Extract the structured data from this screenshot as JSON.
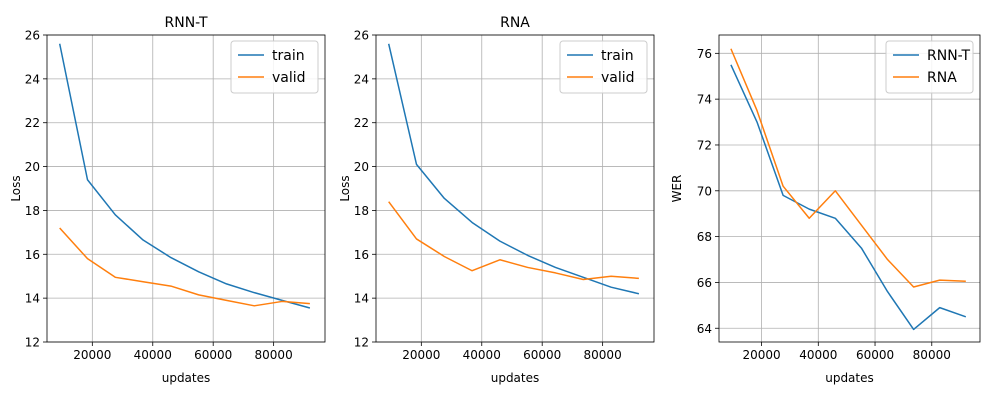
{
  "chart_data": [
    {
      "type": "line",
      "title": "RNN-T",
      "xlabel": "updates",
      "ylabel": "Loss",
      "xlim": [
        5000,
        97000
      ],
      "ylim": [
        12,
        26
      ],
      "xticks": [
        20000,
        40000,
        60000,
        80000
      ],
      "xtick_labels": [
        "20000",
        "40000",
        "60000",
        "80000"
      ],
      "yticks": [
        12,
        14,
        16,
        18,
        20,
        22,
        24,
        26
      ],
      "ytick_labels": [
        "12",
        "14",
        "16",
        "18",
        "20",
        "22",
        "24",
        "26"
      ],
      "grid": true,
      "legend_position": "upper-right",
      "series": [
        {
          "name": "train",
          "color": "#1f77b4",
          "x": [
            9200,
            18400,
            27600,
            36800,
            46000,
            55200,
            64400,
            73600,
            82800,
            92000
          ],
          "y": [
            25.6,
            19.4,
            17.8,
            16.65,
            15.85,
            15.2,
            14.65,
            14.25,
            13.9,
            13.55
          ]
        },
        {
          "name": "valid",
          "color": "#ff7f0e",
          "x": [
            9200,
            18400,
            27600,
            36800,
            46000,
            55200,
            64400,
            73600,
            82800,
            92000
          ],
          "y": [
            17.2,
            15.8,
            14.95,
            14.75,
            14.55,
            14.15,
            13.9,
            13.65,
            13.85,
            13.75
          ]
        }
      ]
    },
    {
      "type": "line",
      "title": "RNA",
      "xlabel": "updates",
      "ylabel": "Loss",
      "xlim": [
        5000,
        97000
      ],
      "ylim": [
        12,
        26
      ],
      "xticks": [
        20000,
        40000,
        60000,
        80000
      ],
      "xtick_labels": [
        "20000",
        "40000",
        "60000",
        "80000"
      ],
      "yticks": [
        12,
        14,
        16,
        18,
        20,
        22,
        24,
        26
      ],
      "ytick_labels": [
        "12",
        "14",
        "16",
        "18",
        "20",
        "22",
        "24",
        "26"
      ],
      "grid": true,
      "legend_position": "upper-right",
      "series": [
        {
          "name": "train",
          "color": "#1f77b4",
          "x": [
            9200,
            18400,
            27600,
            36800,
            46000,
            55200,
            64400,
            73600,
            82800,
            92000
          ],
          "y": [
            25.6,
            20.1,
            18.55,
            17.45,
            16.6,
            15.95,
            15.4,
            14.95,
            14.5,
            14.2
          ]
        },
        {
          "name": "valid",
          "color": "#ff7f0e",
          "x": [
            9200,
            18400,
            27600,
            36800,
            46000,
            55200,
            64400,
            73600,
            82800,
            92000
          ],
          "y": [
            18.4,
            16.7,
            15.9,
            15.25,
            15.75,
            15.4,
            15.15,
            14.85,
            15.0,
            14.9
          ]
        }
      ]
    },
    {
      "type": "line",
      "title": "",
      "xlabel": "updates",
      "ylabel": "WER",
      "xlim": [
        5000,
        97000
      ],
      "ylim": [
        63.4,
        76.8
      ],
      "xticks": [
        20000,
        40000,
        60000,
        80000
      ],
      "xtick_labels": [
        "20000",
        "40000",
        "60000",
        "80000"
      ],
      "yticks": [
        64,
        66,
        68,
        70,
        72,
        74,
        76
      ],
      "ytick_labels": [
        "64",
        "66",
        "68",
        "70",
        "72",
        "74",
        "76"
      ],
      "grid": true,
      "legend_position": "upper-right",
      "series": [
        {
          "name": "RNN-T",
          "color": "#1f77b4",
          "x": [
            9200,
            18400,
            27600,
            36800,
            46000,
            55200,
            64400,
            73600,
            82800,
            92000
          ],
          "y": [
            75.5,
            73.0,
            69.8,
            69.2,
            68.8,
            67.5,
            65.6,
            63.95,
            64.9,
            64.5
          ]
        },
        {
          "name": "RNA",
          "color": "#ff7f0e",
          "x": [
            9200,
            18400,
            27600,
            36800,
            46000,
            55200,
            64400,
            73600,
            82800,
            92000
          ],
          "y": [
            76.2,
            73.5,
            70.2,
            68.8,
            70.0,
            68.5,
            67.0,
            65.8,
            66.1,
            66.05
          ]
        }
      ]
    }
  ]
}
